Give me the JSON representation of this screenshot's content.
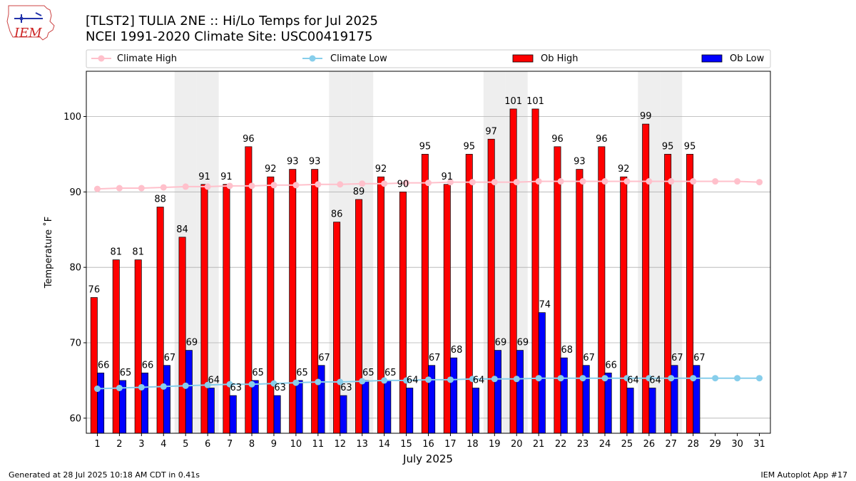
{
  "header": {
    "title_line1": "[TLST2] TULIA 2NE :: Hi/Lo Temps for Jul 2025",
    "title_line2": "NCEI 1991-2020 Climate Site: USC00419175",
    "logo_text": "IEM"
  },
  "footer": {
    "left": "Generated at 28 Jul 2025 10:18 AM CDT in 0.41s",
    "right": "IEM Autoplot App #17"
  },
  "chart_data": {
    "type": "bar",
    "xlabel": "July 2025",
    "ylabel": "Temperature ˚F",
    "ylim": [
      58,
      106
    ],
    "yticks": [
      60,
      70,
      80,
      90,
      100
    ],
    "xlim": [
      0.5,
      31.5
    ],
    "grid": "horizontal",
    "legend_position": "top",
    "weekend_shading": [
      5,
      6,
      12,
      13,
      19,
      20,
      26,
      27
    ],
    "days": [
      1,
      2,
      3,
      4,
      5,
      6,
      7,
      8,
      9,
      10,
      11,
      12,
      13,
      14,
      15,
      16,
      17,
      18,
      19,
      20,
      21,
      22,
      23,
      24,
      25,
      26,
      27,
      28,
      29,
      30,
      31
    ],
    "series": [
      {
        "name": "Climate High",
        "kind": "line",
        "color": "#ffc0cb",
        "values": [
          90.4,
          90.5,
          90.5,
          90.6,
          90.7,
          90.7,
          90.8,
          90.8,
          90.9,
          90.9,
          91.0,
          91.0,
          91.1,
          91.1,
          91.2,
          91.2,
          91.3,
          91.3,
          91.3,
          91.3,
          91.4,
          91.4,
          91.4,
          91.4,
          91.4,
          91.4,
          91.4,
          91.4,
          91.4,
          91.4,
          91.3
        ]
      },
      {
        "name": "Climate Low",
        "kind": "line",
        "color": "#87ceeb",
        "values": [
          63.9,
          64.0,
          64.1,
          64.2,
          64.3,
          64.4,
          64.5,
          64.5,
          64.6,
          64.7,
          64.8,
          64.8,
          64.9,
          65.0,
          65.0,
          65.1,
          65.1,
          65.2,
          65.2,
          65.2,
          65.3,
          65.3,
          65.3,
          65.3,
          65.3,
          65.3,
          65.3,
          65.3,
          65.3,
          65.3,
          65.3
        ]
      },
      {
        "name": "Ob High",
        "kind": "bar",
        "color": "#ff0000",
        "values": [
          76,
          81,
          81,
          88,
          84,
          91,
          91,
          96,
          92,
          93,
          93,
          86,
          89,
          92,
          90,
          95,
          91,
          95,
          97,
          101,
          101,
          96,
          93,
          96,
          92,
          99,
          95,
          95,
          null,
          null,
          null
        ]
      },
      {
        "name": "Ob Low",
        "kind": "bar",
        "color": "#0000ff",
        "values": [
          66,
          65,
          66,
          67,
          69,
          64,
          63,
          65,
          63,
          65,
          67,
          63,
          65,
          65,
          64,
          67,
          68,
          64,
          69,
          69,
          74,
          68,
          67,
          66,
          64,
          64,
          67,
          67,
          null,
          null,
          null
        ]
      }
    ]
  }
}
